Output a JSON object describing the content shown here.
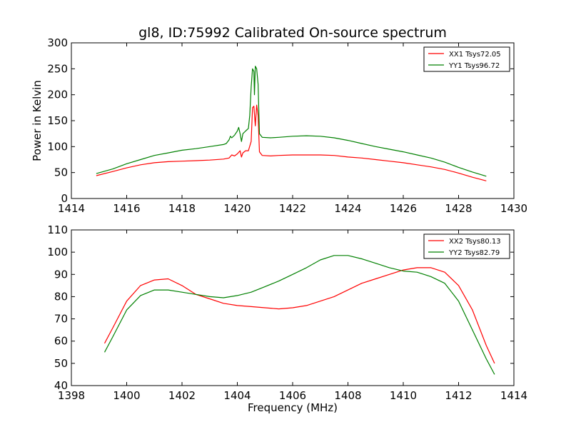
{
  "title": "gl8, ID:75992 Calibrated On-source spectrum",
  "colors": {
    "xx": "#ff0000",
    "yy": "#008000",
    "background": "#ffffff",
    "axes": "#000000"
  },
  "chart_data": [
    {
      "type": "line",
      "title": "gl8, ID:75992 Calibrated On-source spectrum",
      "xlabel": "",
      "ylabel": "Power in Kelvin",
      "xlim": [
        1414,
        1430
      ],
      "ylim": [
        0,
        300
      ],
      "xticks": [
        "1414",
        "1416",
        "1418",
        "1420",
        "1422",
        "1424",
        "1426",
        "1428",
        "1430"
      ],
      "yticks": [
        "0",
        "50",
        "100",
        "150",
        "200",
        "250",
        "300"
      ],
      "grid": false,
      "legend_position": "top-right",
      "series": [
        {
          "name": "XX1 Tsys72.05",
          "color": "#ff0000",
          "points": [
            [
              1414.9,
              44
            ],
            [
              1415.5,
              52
            ],
            [
              1416.0,
              59
            ],
            [
              1416.5,
              65
            ],
            [
              1417.0,
              69
            ],
            [
              1417.5,
              71
            ],
            [
              1418.0,
              72
            ],
            [
              1418.5,
              73
            ],
            [
              1419.0,
              74
            ],
            [
              1419.5,
              76
            ],
            [
              1419.7,
              78
            ],
            [
              1419.8,
              84
            ],
            [
              1419.9,
              82
            ],
            [
              1420.0,
              86
            ],
            [
              1420.1,
              92
            ],
            [
              1420.15,
              80
            ],
            [
              1420.2,
              88
            ],
            [
              1420.3,
              92
            ],
            [
              1420.4,
              92
            ],
            [
              1420.5,
              110
            ],
            [
              1420.55,
              175
            ],
            [
              1420.6,
              178
            ],
            [
              1420.65,
              140
            ],
            [
              1420.7,
              180
            ],
            [
              1420.75,
              160
            ],
            [
              1420.8,
              90
            ],
            [
              1420.9,
              83
            ],
            [
              1421.2,
              82
            ],
            [
              1421.5,
              83
            ],
            [
              1422.0,
              84
            ],
            [
              1422.5,
              84
            ],
            [
              1423.0,
              84
            ],
            [
              1423.5,
              83
            ],
            [
              1424.0,
              80
            ],
            [
              1424.5,
              78
            ],
            [
              1425.0,
              75
            ],
            [
              1425.5,
              72
            ],
            [
              1426.0,
              69
            ],
            [
              1426.5,
              65
            ],
            [
              1427.0,
              61
            ],
            [
              1427.5,
              56
            ],
            [
              1428.0,
              49
            ],
            [
              1428.5,
              41
            ],
            [
              1429.0,
              34
            ]
          ]
        },
        {
          "name": "YY1 Tsys96.72",
          "color": "#008000",
          "points": [
            [
              1414.9,
              48
            ],
            [
              1415.5,
              57
            ],
            [
              1416.0,
              67
            ],
            [
              1416.5,
              75
            ],
            [
              1417.0,
              83
            ],
            [
              1417.5,
              88
            ],
            [
              1418.0,
              93
            ],
            [
              1418.5,
              96
            ],
            [
              1419.0,
              100
            ],
            [
              1419.5,
              104
            ],
            [
              1419.6,
              106
            ],
            [
              1419.7,
              113
            ],
            [
              1419.75,
              120
            ],
            [
              1419.8,
              117
            ],
            [
              1419.9,
              122
            ],
            [
              1420.0,
              130
            ],
            [
              1420.05,
              137
            ],
            [
              1420.1,
              125
            ],
            [
              1420.15,
              110
            ],
            [
              1420.2,
              125
            ],
            [
              1420.3,
              130
            ],
            [
              1420.4,
              135
            ],
            [
              1420.45,
              160
            ],
            [
              1420.5,
              215
            ],
            [
              1420.55,
              250
            ],
            [
              1420.6,
              245
            ],
            [
              1420.62,
              200
            ],
            [
              1420.65,
              255
            ],
            [
              1420.7,
              250
            ],
            [
              1420.75,
              220
            ],
            [
              1420.8,
              125
            ],
            [
              1420.9,
              118
            ],
            [
              1421.2,
              117
            ],
            [
              1421.5,
              118
            ],
            [
              1422.0,
              120
            ],
            [
              1422.5,
              121
            ],
            [
              1423.0,
              120
            ],
            [
              1423.5,
              117
            ],
            [
              1424.0,
              112
            ],
            [
              1424.5,
              106
            ],
            [
              1425.0,
              100
            ],
            [
              1425.5,
              95
            ],
            [
              1426.0,
              90
            ],
            [
              1426.5,
              84
            ],
            [
              1427.0,
              78
            ],
            [
              1427.5,
              70
            ],
            [
              1428.0,
              60
            ],
            [
              1428.5,
              51
            ],
            [
              1429.0,
              43
            ]
          ]
        }
      ]
    },
    {
      "type": "line",
      "title": "",
      "xlabel": "Frequency (MHz)",
      "ylabel": "",
      "xlim": [
        1398,
        1414
      ],
      "ylim": [
        40,
        110
      ],
      "xticks": [
        "1398",
        "1400",
        "1402",
        "1404",
        "1406",
        "1408",
        "1410",
        "1412",
        "1414"
      ],
      "yticks": [
        "40",
        "50",
        "60",
        "70",
        "80",
        "90",
        "100",
        "110"
      ],
      "grid": false,
      "legend_position": "top-right",
      "series": [
        {
          "name": "XX2 Tsys80.13",
          "color": "#ff0000",
          "points": [
            [
              1399.2,
              59
            ],
            [
              1399.5,
              66
            ],
            [
              1400.0,
              78
            ],
            [
              1400.5,
              85
            ],
            [
              1401.0,
              87.5
            ],
            [
              1401.5,
              88
            ],
            [
              1402.0,
              85
            ],
            [
              1402.5,
              81
            ],
            [
              1403.0,
              79
            ],
            [
              1403.5,
              77
            ],
            [
              1404.0,
              76
            ],
            [
              1404.5,
              75.5
            ],
            [
              1405.0,
              75
            ],
            [
              1405.5,
              74.5
            ],
            [
              1406.0,
              75
            ],
            [
              1406.5,
              76
            ],
            [
              1407.0,
              78
            ],
            [
              1407.5,
              80
            ],
            [
              1408.0,
              83
            ],
            [
              1408.5,
              86
            ],
            [
              1409.0,
              88
            ],
            [
              1409.5,
              90
            ],
            [
              1410.0,
              92
            ],
            [
              1410.5,
              93
            ],
            [
              1411.0,
              93
            ],
            [
              1411.5,
              91
            ],
            [
              1412.0,
              85
            ],
            [
              1412.5,
              74
            ],
            [
              1413.0,
              58
            ],
            [
              1413.3,
              50
            ]
          ]
        },
        {
          "name": "YY2 Tsys82.79",
          "color": "#008000",
          "points": [
            [
              1399.2,
              55
            ],
            [
              1399.5,
              62
            ],
            [
              1400.0,
              74
            ],
            [
              1400.5,
              80.5
            ],
            [
              1401.0,
              83
            ],
            [
              1401.5,
              83
            ],
            [
              1402.0,
              82
            ],
            [
              1402.5,
              81
            ],
            [
              1403.0,
              80
            ],
            [
              1403.5,
              79.5
            ],
            [
              1404.0,
              80.5
            ],
            [
              1404.5,
              82
            ],
            [
              1405.0,
              84.5
            ],
            [
              1405.5,
              87
            ],
            [
              1406.0,
              90
            ],
            [
              1406.5,
              93
            ],
            [
              1407.0,
              96.5
            ],
            [
              1407.5,
              98.5
            ],
            [
              1408.0,
              98.5
            ],
            [
              1408.5,
              97
            ],
            [
              1409.0,
              95
            ],
            [
              1409.5,
              93
            ],
            [
              1410.0,
              91.5
            ],
            [
              1410.5,
              91
            ],
            [
              1411.0,
              89
            ],
            [
              1411.5,
              86
            ],
            [
              1412.0,
              78
            ],
            [
              1412.5,
              65
            ],
            [
              1413.0,
              52
            ],
            [
              1413.3,
              45
            ]
          ]
        }
      ]
    }
  ]
}
